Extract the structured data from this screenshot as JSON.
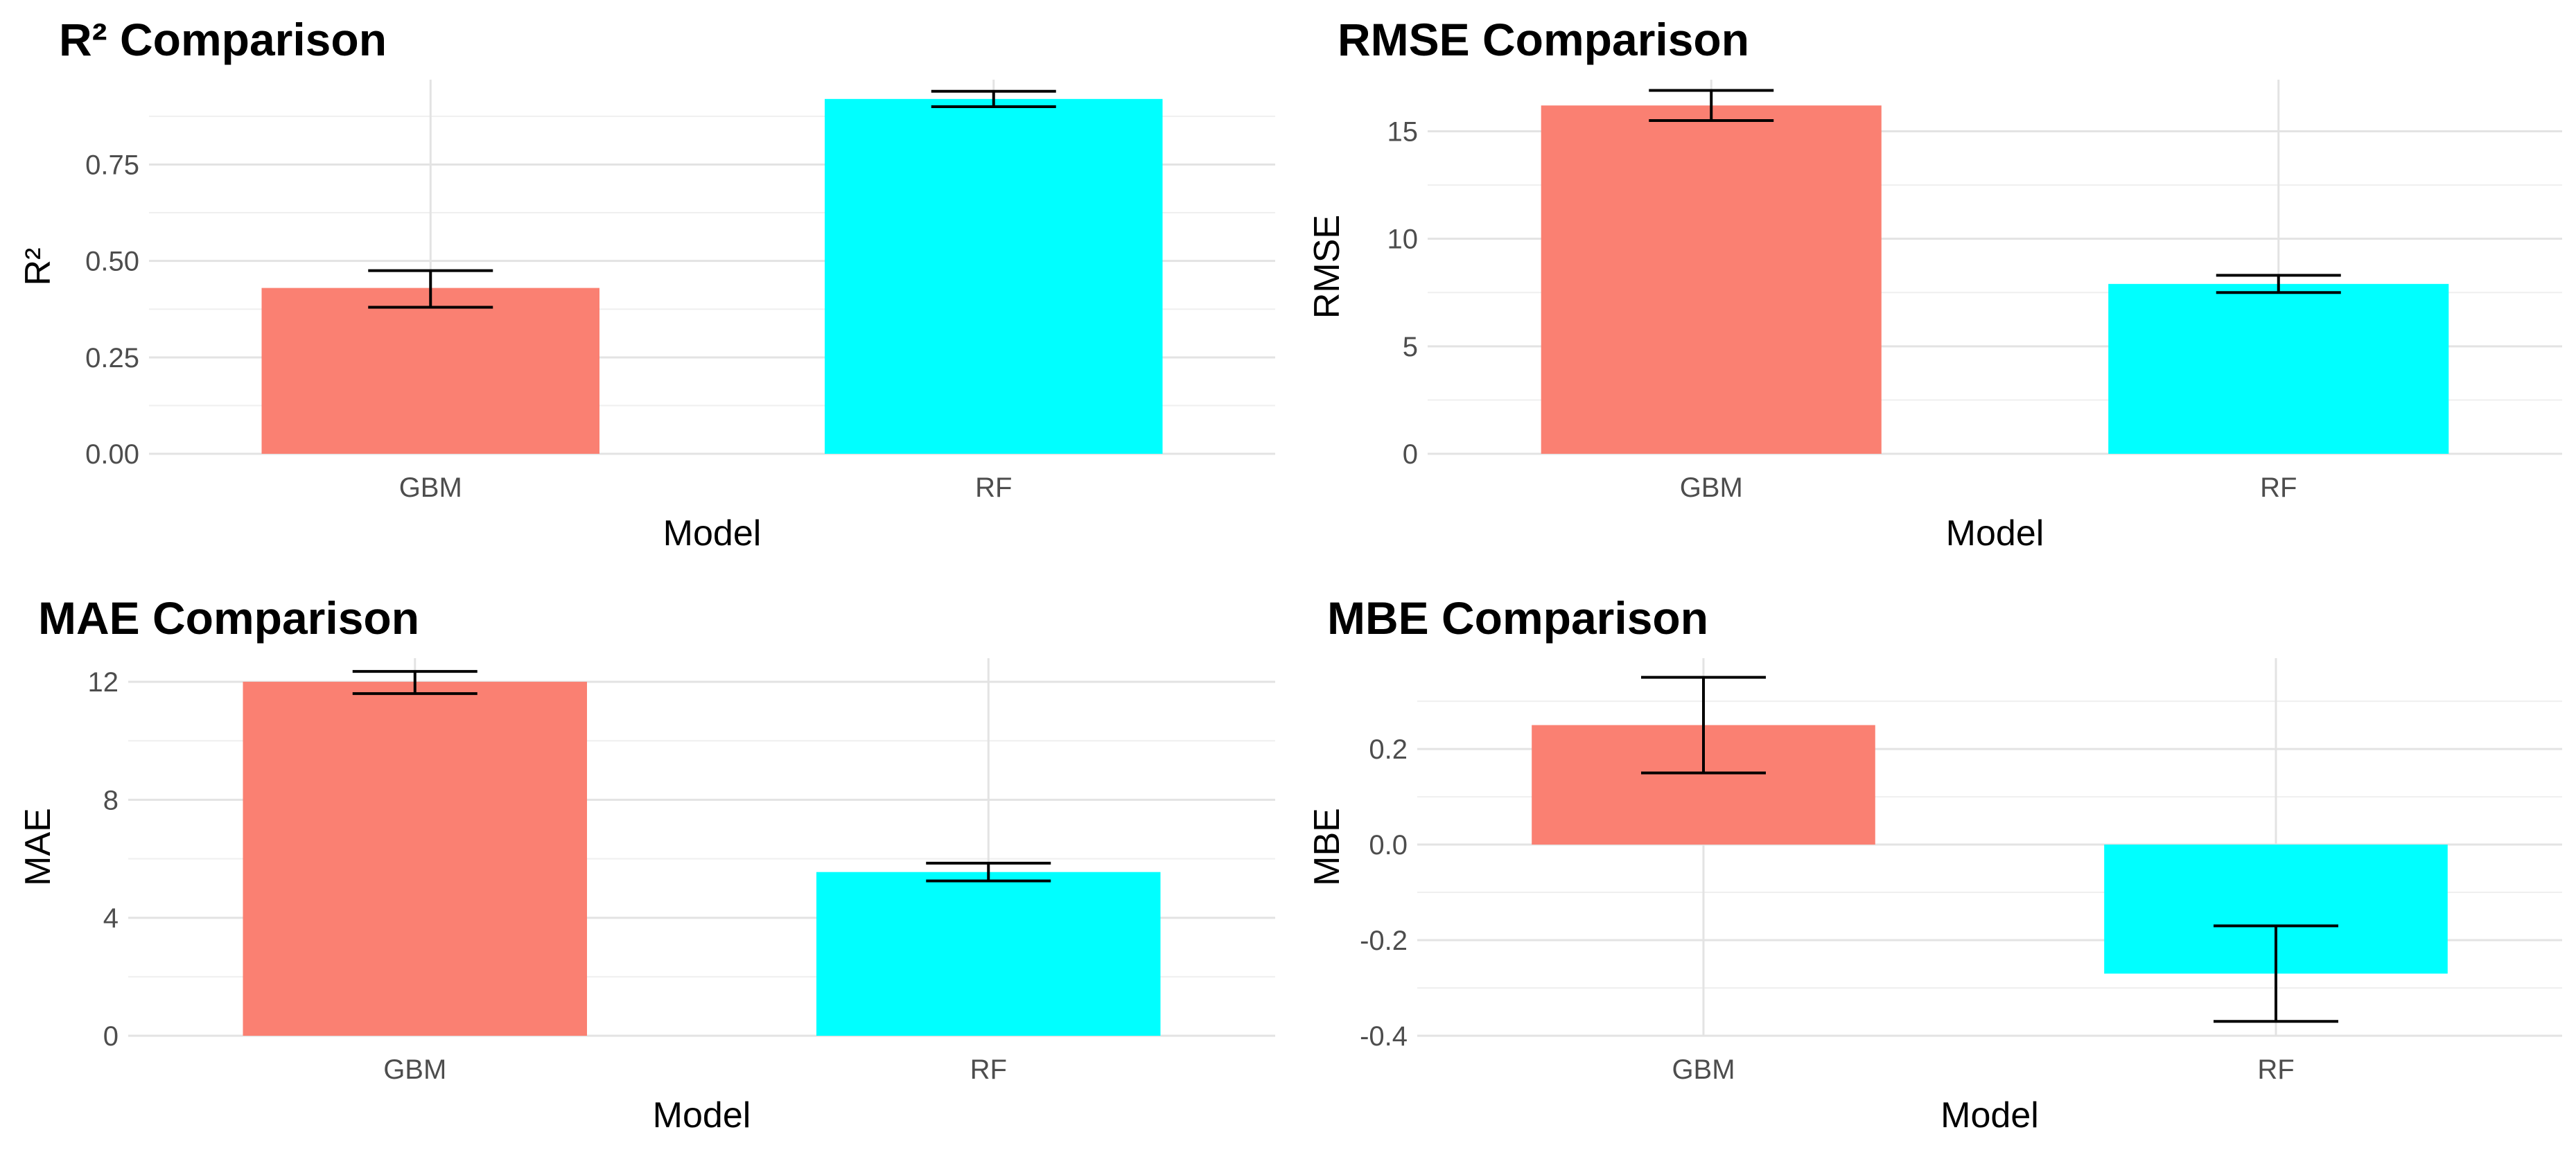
{
  "chart_data": [
    {
      "type": "bar",
      "title": "R² Comparison",
      "xlabel": "Model",
      "ylabel": "R²",
      "categories": [
        "GBM",
        "RF"
      ],
      "values": [
        0.43,
        0.92
      ],
      "error": [
        [
          0.38,
          0.475
        ],
        [
          0.9,
          0.94
        ]
      ],
      "ylim": [
        0,
        0.97
      ],
      "yticks": [
        0,
        0.25,
        0.5,
        0.75
      ],
      "yticklabels": [
        "0.00",
        "0.25",
        "0.50",
        "0.75"
      ],
      "colors": [
        "#FA8072",
        "#00FFFF"
      ],
      "grid": true,
      "legend": "none"
    },
    {
      "type": "bar",
      "title": "RMSE Comparison",
      "xlabel": "Model",
      "ylabel": "RMSE",
      "categories": [
        "GBM",
        "RF"
      ],
      "values": [
        16.2,
        7.9
      ],
      "error": [
        [
          15.5,
          16.9
        ],
        [
          7.5,
          8.3
        ]
      ],
      "ylim": [
        0,
        17.4
      ],
      "yticks": [
        0,
        5,
        10,
        15
      ],
      "yticklabels": [
        "0",
        "5",
        "10",
        "15"
      ],
      "colors": [
        "#FA8072",
        "#00FFFF"
      ],
      "grid": true,
      "legend": "none"
    },
    {
      "type": "bar",
      "title": "MAE Comparison",
      "xlabel": "Model",
      "ylabel": "MAE",
      "categories": [
        "GBM",
        "RF"
      ],
      "values": [
        12.0,
        5.55
      ],
      "error": [
        [
          11.6,
          12.35
        ],
        [
          5.25,
          5.85
        ]
      ],
      "ylim": [
        0,
        12.8
      ],
      "yticks": [
        0,
        4,
        8,
        12
      ],
      "yticklabels": [
        "0",
        "4",
        "8",
        "12"
      ],
      "colors": [
        "#FA8072",
        "#00FFFF"
      ],
      "grid": true,
      "legend": "none"
    },
    {
      "type": "bar",
      "title": "MBE Comparison",
      "xlabel": "Model",
      "ylabel": "MBE",
      "categories": [
        "GBM",
        "RF"
      ],
      "values": [
        0.25,
        -0.27
      ],
      "error": [
        [
          0.15,
          0.35
        ],
        [
          -0.37,
          -0.17
        ]
      ],
      "ylim": [
        -0.4,
        0.39
      ],
      "yticks": [
        -0.4,
        -0.2,
        0,
        0.2
      ],
      "yticklabels": [
        "-0.4",
        "-0.2",
        "0.0",
        "0.2"
      ],
      "colors": [
        "#FA8072",
        "#00FFFF"
      ],
      "grid": true,
      "legend": "none"
    }
  ]
}
